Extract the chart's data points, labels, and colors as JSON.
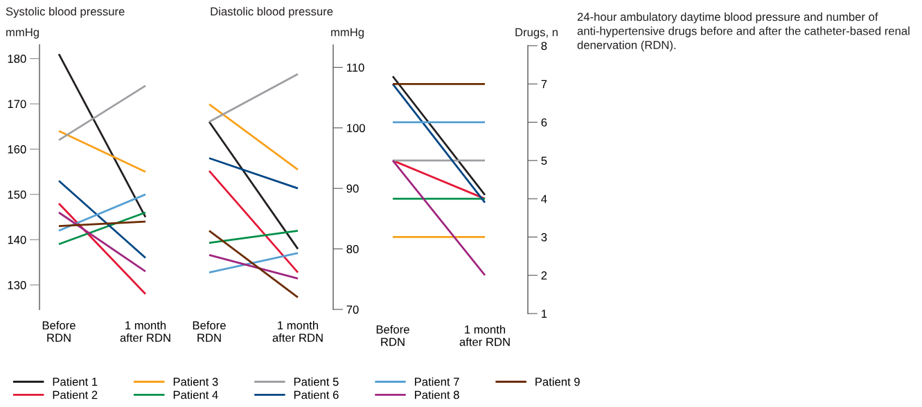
{
  "chart_data": [
    {
      "type": "line",
      "title": "Systolic blood pressure",
      "ylabel": "mmHg",
      "categories": [
        "Before\nRDN",
        "1 month\nafter RDN"
      ],
      "ylim": [
        124.6,
        183
      ],
      "yticks": [
        130,
        140,
        150,
        160,
        170,
        180
      ],
      "legend": "bottom",
      "grid": false,
      "series": [
        {
          "name": "Patient 1",
          "color": "#231f20",
          "values": [
            181,
            145
          ]
        },
        {
          "name": "Patient 2",
          "color": "#e31837",
          "values": [
            148,
            128
          ]
        },
        {
          "name": "Patient 3",
          "color": "#f9a11b",
          "values": [
            164,
            155
          ]
        },
        {
          "name": "Patient 4",
          "color": "#00904a",
          "values": [
            139,
            146
          ]
        },
        {
          "name": "Patient 5",
          "color": "#9d9fa2",
          "values": [
            162,
            174
          ]
        },
        {
          "name": "Patient 6",
          "color": "#004684",
          "values": [
            153,
            136
          ]
        },
        {
          "name": "Patient 7",
          "color": "#56a0d3",
          "values": [
            142,
            150
          ]
        },
        {
          "name": "Patient 8",
          "color": "#a0267f",
          "values": [
            146,
            133
          ]
        },
        {
          "name": "Patient 9",
          "color": "#6b2c00",
          "values": [
            143,
            144
          ]
        }
      ]
    },
    {
      "type": "line",
      "title": "Diastolic blood pressure",
      "ylabel": "mmHg",
      "categories": [
        "Before\nRDN",
        "1 month\nafter RDN"
      ],
      "ylim": [
        70,
        113.7
      ],
      "yticks": [
        70,
        80,
        90,
        100,
        110
      ],
      "grid": false,
      "series": [
        {
          "color": "#231f20",
          "values": [
            101,
            80
          ]
        },
        {
          "color": "#e31837",
          "values": [
            92.9,
            76.1
          ]
        },
        {
          "color": "#f9a11b",
          "values": [
            103.9,
            93.1
          ]
        },
        {
          "color": "#00904a",
          "values": [
            81,
            83
          ]
        },
        {
          "color": "#9d9fa2",
          "values": [
            101,
            108.9
          ]
        },
        {
          "color": "#004684",
          "values": [
            95,
            90
          ]
        },
        {
          "color": "#56a0d3",
          "values": [
            76.1,
            79.3
          ]
        },
        {
          "color": "#a0267f",
          "values": [
            79,
            75.1
          ]
        },
        {
          "color": "#6b2c00",
          "values": [
            83,
            72
          ]
        }
      ]
    },
    {
      "type": "line",
      "ylabel": "Drugs, n",
      "categories": [
        "Before\nRDN",
        "1 month\nafter RDN"
      ],
      "ylim": [
        1,
        8
      ],
      "yticks": [
        1,
        2,
        3,
        4,
        5,
        6,
        7,
        8
      ],
      "grid": false,
      "annotations": [
        "24-hour ambulatory daytime blood pressure and number of anti-hypertensive drugs before and after the catheter-based renal denervation (RDN)."
      ],
      "series": [
        {
          "color": "#231f20",
          "values": [
            7.2,
            4.1
          ]
        },
        {
          "color": "#e31837",
          "values": [
            5,
            4
          ]
        },
        {
          "color": "#f9a11b",
          "values": [
            3,
            3
          ]
        },
        {
          "color": "#00904a",
          "values": [
            4,
            4
          ]
        },
        {
          "color": "#9d9fa2",
          "values": [
            5,
            5
          ]
        },
        {
          "color": "#004684",
          "values": [
            7,
            3.9
          ]
        },
        {
          "color": "#56a0d3",
          "values": [
            6,
            6
          ]
        },
        {
          "color": "#a0267f",
          "values": [
            5,
            2
          ]
        },
        {
          "color": "#6b2c00",
          "values": [
            7,
            7
          ]
        }
      ]
    }
  ]
}
